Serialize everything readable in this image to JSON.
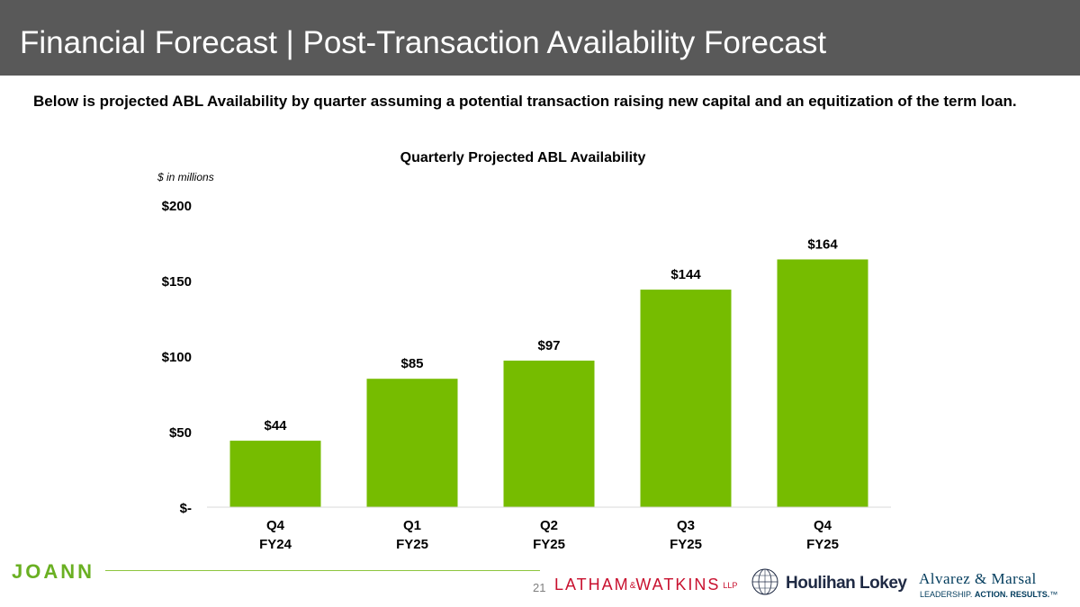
{
  "header": {
    "title": "Financial Forecast | Post-Transaction Availability Forecast"
  },
  "intro_text": "Below is projected ABL Availability by quarter assuming a potential transaction raising new capital and an equitization of the term loan.",
  "chart_data": {
    "type": "bar",
    "title": "Quarterly Projected ABL Availability",
    "unit_note": "$ in millions",
    "categories": [
      {
        "line1": "Q4",
        "line2": "FY24"
      },
      {
        "line1": "Q1",
        "line2": "FY25"
      },
      {
        "line1": "Q2",
        "line2": "FY25"
      },
      {
        "line1": "Q3",
        "line2": "FY25"
      },
      {
        "line1": "Q4",
        "line2": "FY25"
      }
    ],
    "values": [
      44,
      85,
      97,
      144,
      164
    ],
    "value_labels": [
      "$44",
      "$85",
      "$97",
      "$144",
      "$164"
    ],
    "ylim": [
      0,
      200
    ],
    "yticks": [
      0,
      50,
      100,
      150,
      200
    ],
    "ytick_labels": [
      "$-",
      "$50",
      "$100",
      "$150",
      "$200"
    ],
    "xlabel": "",
    "ylabel": "",
    "grid": false,
    "bar_color": "#76bc00"
  },
  "footer": {
    "brand": "JOANN",
    "page_number": "21",
    "latham": "LATHAM",
    "latham_amp": "&",
    "watkins": "WATKINS",
    "latham_llp": "LLP",
    "houlihan": "Houlihan Lokey",
    "alvarez": "Alvarez & Marsal",
    "alvarez_tag_1": "LEADERSHIP.",
    "alvarez_tag_2": "ACTION. RESULTS.",
    "alvarez_tm": "™"
  },
  "colors": {
    "header_bg": "#595959",
    "accent_green": "#76bc00"
  }
}
